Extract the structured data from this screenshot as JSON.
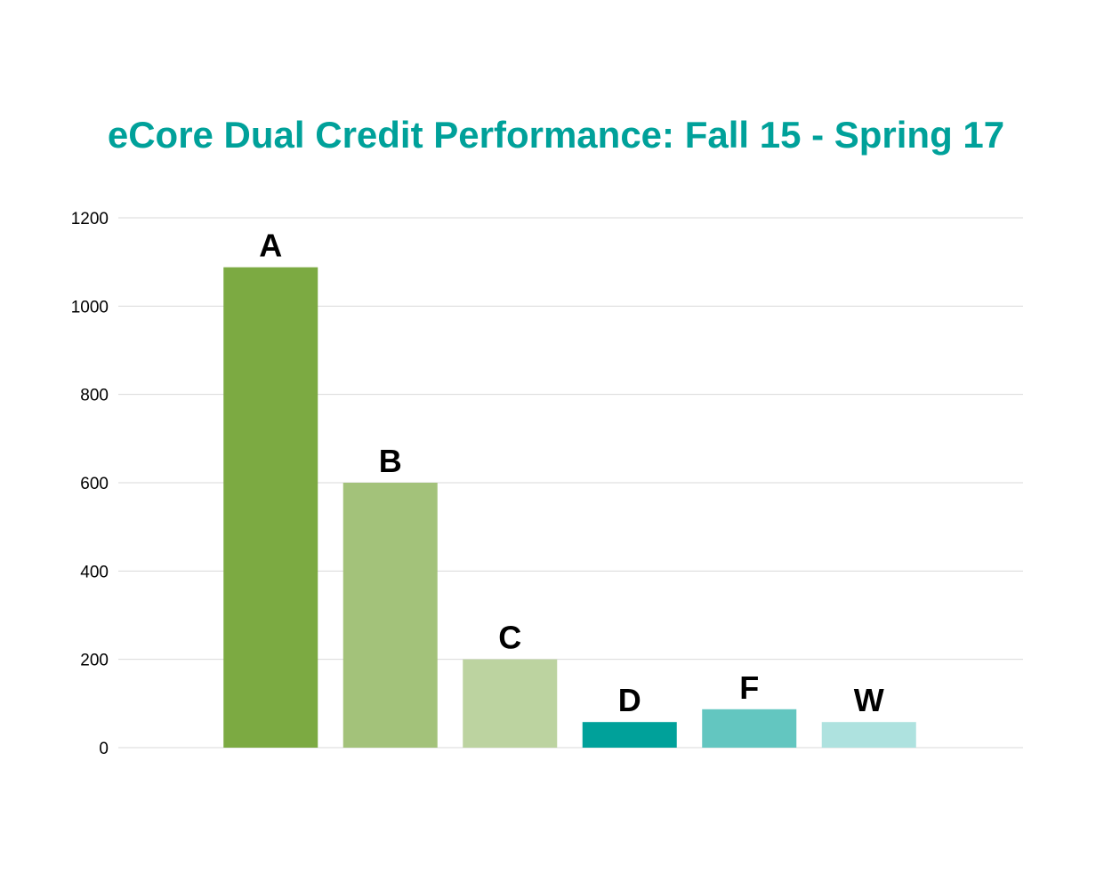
{
  "chart_data": {
    "type": "bar",
    "title": "eCore Dual Credit Performance: Fall 15 - Spring 17",
    "categories": [
      "A",
      "B",
      "C",
      "D",
      "F",
      "W"
    ],
    "values": [
      1088,
      600,
      200,
      58,
      87,
      58
    ],
    "bar_colors": [
      "#7caa42",
      "#a3c27a",
      "#bcd3a0",
      "#00a19a",
      "#63c6c0",
      "#aee2df"
    ],
    "data_labels": [
      "A",
      "B",
      "C",
      "D",
      "F",
      "W"
    ],
    "xlabel": "",
    "ylabel": "",
    "ylim": [
      0,
      1200
    ],
    "y_ticks": [
      0,
      200,
      400,
      600,
      800,
      1000,
      1200
    ],
    "grid": true,
    "legend": "none",
    "title_color": "#00a19a",
    "grid_color": "#d9d9d9"
  }
}
